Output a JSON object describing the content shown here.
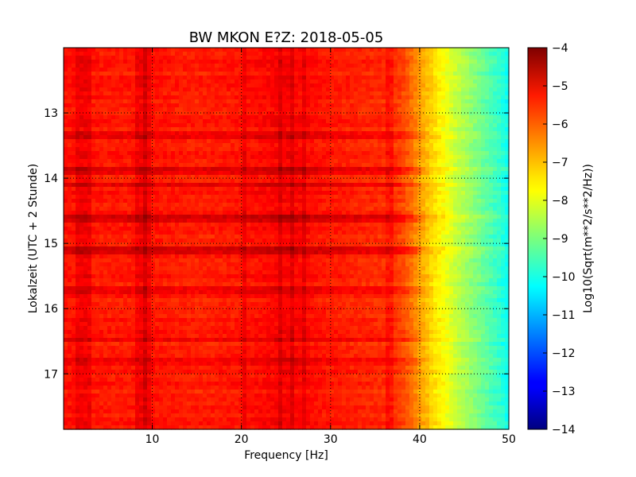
{
  "chart_data": {
    "type": "heatmap",
    "title": "BW MKON E?Z: 2018-05-05",
    "xlabel": "Frequency [Hz]",
    "ylabel": "Lokalzeit (UTC + 2 Stunde)",
    "colorbar_label": "Log10(Sqrt(m**2/s**2/Hz))",
    "xlim": [
      0.05,
      50
    ],
    "ylim": [
      17.85,
      12.0
    ],
    "x_ticks": [
      10,
      20,
      30,
      40,
      50
    ],
    "y_ticks": [
      13,
      14,
      15,
      16,
      17
    ],
    "color_range": [
      -14,
      -4
    ],
    "colorbar_ticks": [
      -4,
      -5,
      -6,
      -7,
      -8,
      -9,
      -10,
      -11,
      -12,
      -13,
      -14
    ],
    "colormap": "jet",
    "grid": true,
    "grid_style": "dotted",
    "spectral_profile": {
      "frequency_hz": [
        0,
        5,
        10,
        15,
        20,
        25,
        30,
        35,
        37,
        38,
        39,
        40,
        41,
        42,
        43,
        44,
        45,
        46,
        47,
        48,
        49,
        50
      ],
      "log10_amplitude": [
        -5.4,
        -5.5,
        -5.45,
        -5.55,
        -5.45,
        -5.2,
        -5.5,
        -5.65,
        -5.75,
        -5.9,
        -6.3,
        -6.8,
        -7.2,
        -7.6,
        -7.9,
        -8.3,
        -8.6,
        -8.9,
        -9.2,
        -9.5,
        -9.8,
        -10.2
      ]
    },
    "vertical_lines_hz": [
      1.8,
      2.6,
      8.3,
      8.9,
      9.5,
      20.3,
      24.4,
      25.7,
      27.0,
      36.5
    ],
    "horizontal_events": [
      {
        "time_h": 13.35,
        "log10_offset": 0.35
      },
      {
        "time_h": 13.89,
        "log10_offset": 0.5
      },
      {
        "time_h": 14.1,
        "log10_offset": 0.55
      },
      {
        "time_h": 14.62,
        "log10_offset": 0.6
      },
      {
        "time_h": 15.1,
        "log10_offset": 0.6
      },
      {
        "time_h": 15.7,
        "log10_offset": 0.45
      },
      {
        "time_h": 16.48,
        "log10_offset": 0.35
      },
      {
        "time_h": 16.8,
        "log10_offset": 0.3
      }
    ]
  }
}
